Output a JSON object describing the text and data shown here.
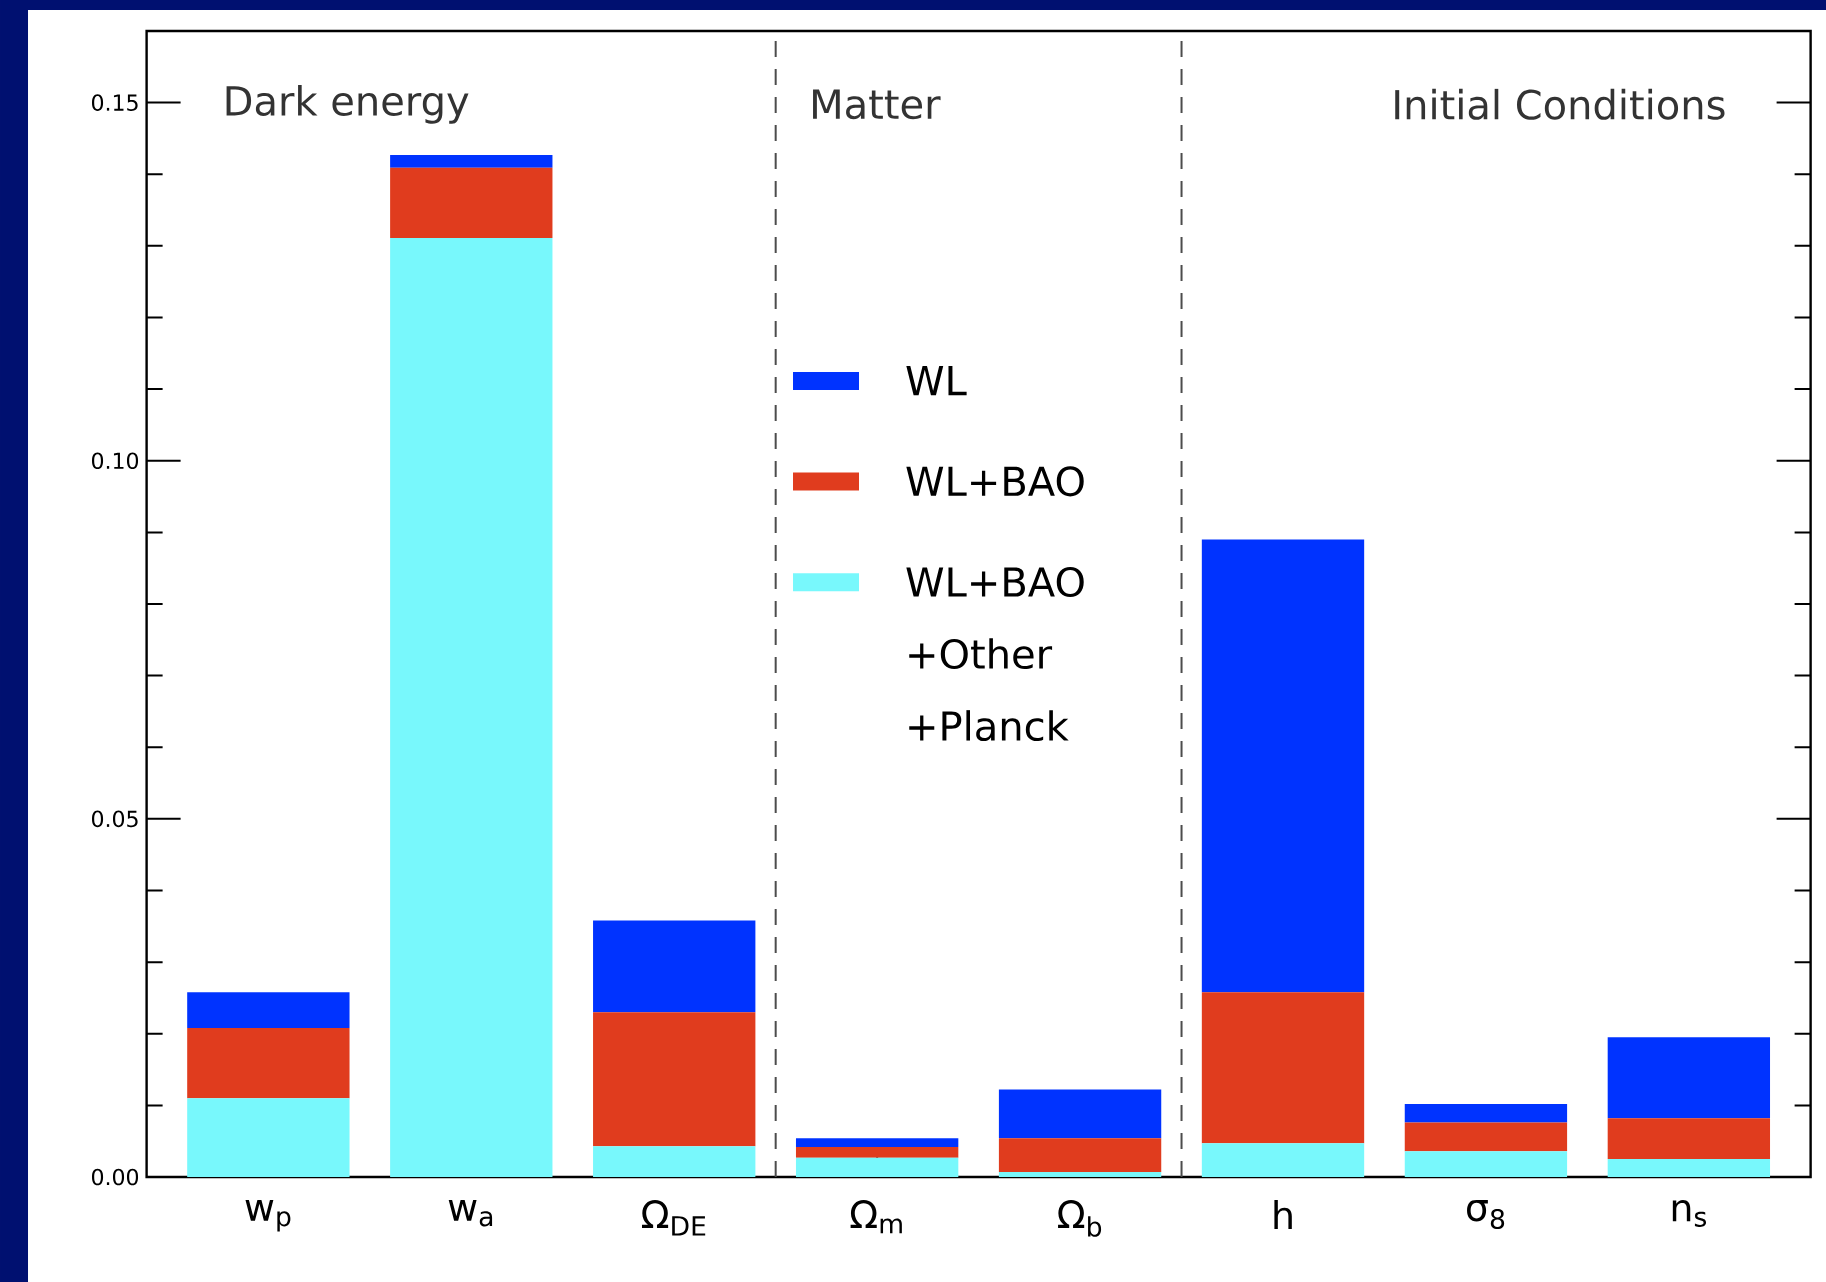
{
  "chart_data": {
    "type": "bar",
    "stacked": true,
    "categories": [
      "w$_{p}$",
      "w$_{a}$",
      "Ω$_{DE}$",
      "Ω$_{m}$",
      "Ω$_{b}$",
      "h",
      "σ$_{8}$",
      "n$_{s}$"
    ],
    "series": [
      {
        "name": "WL+BAO +Other +Planck",
        "color": "#78f8fc",
        "values": [
          0.011,
          0.1311,
          0.0043,
          0.0027,
          0.0007,
          0.0047,
          0.0036,
          0.0025
        ]
      },
      {
        "name": "WL+BAO",
        "color": "#e03c1e",
        "values": [
          0.0098,
          0.0098,
          0.0187,
          0.0015,
          0.0047,
          0.0211,
          0.004,
          0.0057
        ]
      },
      {
        "name": "WL",
        "color": "#0033ff",
        "values": [
          0.005,
          0.0018,
          0.0128,
          0.0012,
          0.0068,
          0.0632,
          0.0026,
          0.0113
        ]
      }
    ],
    "ylim": [
      0,
      0.16
    ],
    "yticks": [
      {
        "value": 0,
        "label": "0.00"
      },
      {
        "value": 0.01,
        "label": null
      },
      {
        "value": 0.02,
        "label": null
      },
      {
        "value": 0.03,
        "label": null
      },
      {
        "value": 0.04,
        "label": null
      },
      {
        "value": 0.05,
        "label": "0.05"
      },
      {
        "value": 0.06,
        "label": null
      },
      {
        "value": 0.07,
        "label": null
      },
      {
        "value": 0.08,
        "label": null
      },
      {
        "value": 0.09,
        "label": null
      },
      {
        "value": 0.1,
        "label": "0.10"
      },
      {
        "value": 0.11,
        "label": null
      },
      {
        "value": 0.12,
        "label": null
      },
      {
        "value": 0.13,
        "label": null
      },
      {
        "value": 0.14,
        "label": null
      },
      {
        "value": 0.15,
        "label": "0.15"
      }
    ],
    "annotations": [
      "Dark energy",
      "Matter",
      "Initial Conditions"
    ],
    "legend": "center"
  }
}
